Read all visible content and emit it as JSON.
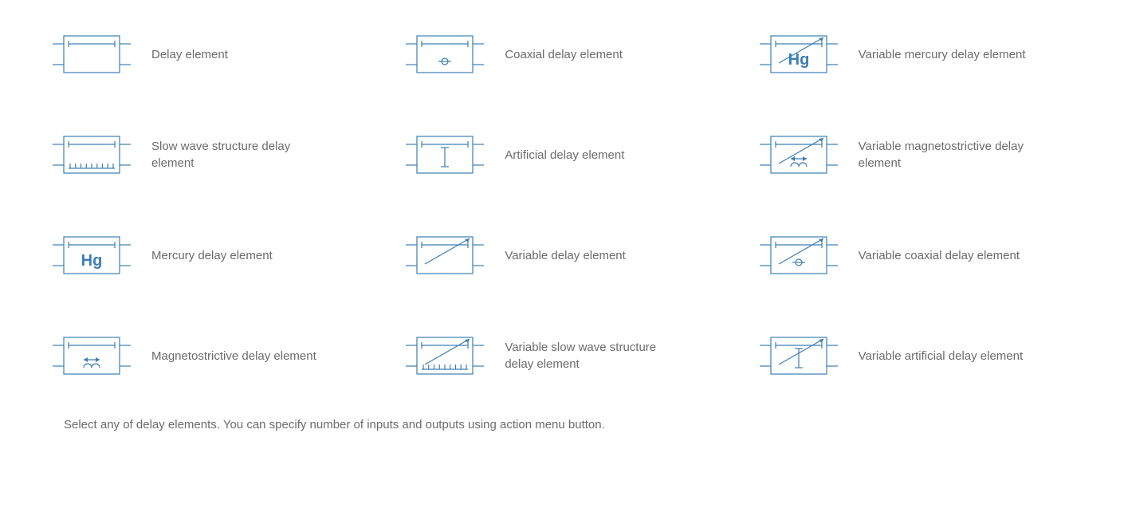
{
  "colors": {
    "stroke": "#3a7fb5",
    "fill": "#ffffff",
    "text": "#6b6b6b",
    "hg_text": "#3a7fb5"
  },
  "stroke_width": 1.2,
  "symbol_box": {
    "width": 70,
    "height": 46
  },
  "lead_length": 14,
  "font_family": "Arial, sans-serif",
  "label_fontsize": 15,
  "hg_fontsize": 20,
  "elements": [
    {
      "id": "delay",
      "label": "Delay element",
      "variant": "basic"
    },
    {
      "id": "coaxial",
      "label": "Coaxial delay element",
      "variant": "coaxial"
    },
    {
      "id": "var-mercury",
      "label": "Variable mercury delay element",
      "variant": "hg",
      "variable": true
    },
    {
      "id": "slow-wave",
      "label": "Slow wave structure delay element",
      "variant": "slowwave"
    },
    {
      "id": "artificial",
      "label": "Artificial delay element",
      "variant": "artificial"
    },
    {
      "id": "var-magnetostrictive",
      "label": "Variable magnetostrictive delay element",
      "variant": "magnetostrictive",
      "variable": true
    },
    {
      "id": "mercury",
      "label": "Mercury delay element",
      "variant": "hg"
    },
    {
      "id": "variable",
      "label": "Variable delay element",
      "variant": "basic",
      "variable": true
    },
    {
      "id": "var-coaxial",
      "label": "Variable coaxial delay element",
      "variant": "coaxial",
      "variable": true
    },
    {
      "id": "magnetostrictive",
      "label": "Magnetostrictive delay element",
      "variant": "magnetostrictive"
    },
    {
      "id": "var-slow-wave",
      "label": "Variable slow wave structure delay element",
      "variant": "slowwave",
      "variable": true
    },
    {
      "id": "var-artificial",
      "label": "Variable artificial delay element",
      "variant": "artificial",
      "variable": true
    }
  ],
  "footer": "Select any of delay elements. You can specify number of inputs and outputs using action menu button."
}
